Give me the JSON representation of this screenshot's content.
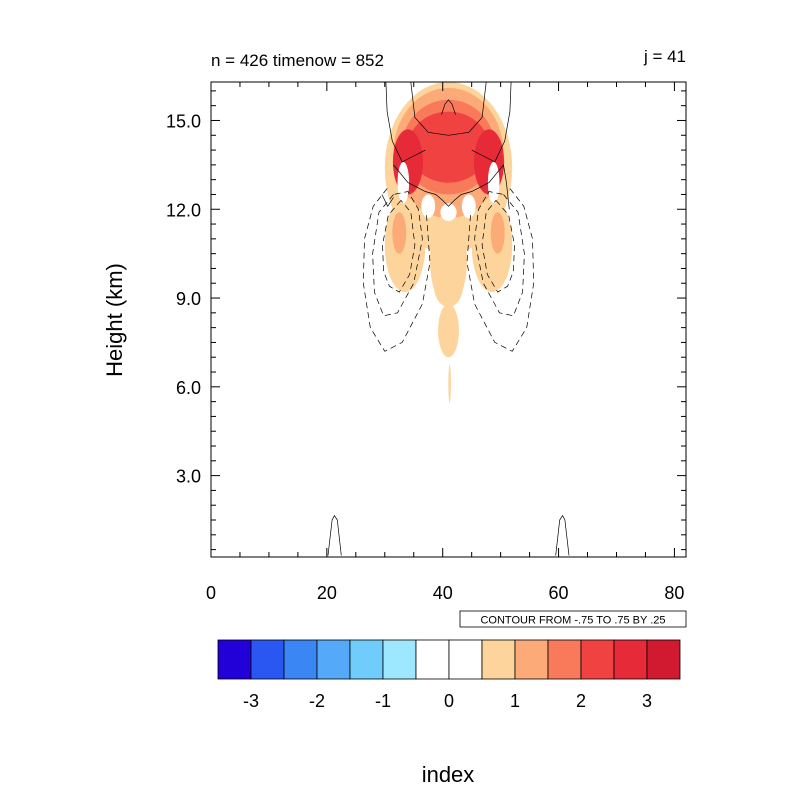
{
  "chart_data": {
    "type": "heatmap",
    "title_left": "n = 426 timenow = 852",
    "title_right": "j = 41",
    "xlabel": "index",
    "ylabel": "Height (km)",
    "xlim": [
      0,
      82
    ],
    "ylim": [
      0.25,
      16.3
    ],
    "xticks": [
      {
        "v": 0,
        "label": "0"
      },
      {
        "v": 20,
        "label": "20"
      },
      {
        "v": 40,
        "label": "40"
      },
      {
        "v": 60,
        "label": "60"
      },
      {
        "v": 80,
        "label": "80"
      }
    ],
    "yticks": [
      {
        "v": 3,
        "label": "3.0"
      },
      {
        "v": 6,
        "label": "6.0"
      },
      {
        "v": 9,
        "label": "9.0"
      },
      {
        "v": 12,
        "label": "12.0"
      },
      {
        "v": 15,
        "label": "15.0"
      }
    ],
    "contour_info": "CONTOUR FROM -.75 TO .75 BY .25",
    "colorbar": {
      "colors": [
        "#2200d8",
        "#2a57f2",
        "#3a86f5",
        "#54aaf8",
        "#70cdfb",
        "#9ee8ff",
        "#ffffff",
        "#ffffff",
        "#fdd49b",
        "#fcaa78",
        "#f87a5a",
        "#f14242",
        "#e62a38",
        "#d11a30"
      ],
      "labels": [
        "-3",
        "-2",
        "-1",
        "0",
        "1",
        "2",
        "3"
      ]
    },
    "filled_features": [
      {
        "name": "upper-ring",
        "level": 1,
        "cx": 41,
        "cy": 13.4,
        "rx": 11,
        "ry": 2.9
      },
      {
        "name": "upper-ring",
        "level": 2,
        "cx": 41,
        "cy": 13.9,
        "rx": 9.5,
        "ry": 2.2
      },
      {
        "name": "upper-ring",
        "level": 3,
        "cx": 41,
        "cy": 14.1,
        "rx": 8,
        "ry": 1.6
      },
      {
        "name": "upper-ring",
        "level": 4,
        "cx": 41,
        "cy": 14.1,
        "rx": 7,
        "ry": 1.2
      },
      {
        "name": "lobe-left",
        "level": 5,
        "cx": 34,
        "cy": 13.6,
        "rx": 2.6,
        "ry": 1.1
      },
      {
        "name": "lobe-right",
        "level": 5,
        "cx": 48,
        "cy": 13.6,
        "rx": 2.6,
        "ry": 1.1
      },
      {
        "name": "side-left",
        "level": 1,
        "cx": 33.5,
        "cy": 10.8,
        "rx": 3.5,
        "ry": 1.6
      },
      {
        "name": "side-right",
        "level": 1,
        "cx": 48.5,
        "cy": 10.8,
        "rx": 3.5,
        "ry": 1.6
      },
      {
        "name": "side-left-core",
        "level": 2,
        "cx": 32.5,
        "cy": 11.2,
        "rx": 1.2,
        "ry": 0.7
      },
      {
        "name": "side-right-core",
        "level": 2,
        "cx": 49.5,
        "cy": 11.2,
        "rx": 1.2,
        "ry": 0.7
      },
      {
        "name": "stem",
        "level": 1,
        "cx": 41,
        "cy": 10.3,
        "rx": 3.2,
        "ry": 1.6
      },
      {
        "name": "stem-lower",
        "level": 1,
        "cx": 41,
        "cy": 9.4,
        "rx": 2.5,
        "ry": 0.7
      },
      {
        "name": "blob",
        "level": 1,
        "cx": 41,
        "cy": 7.9,
        "rx": 1.8,
        "ry": 0.9
      },
      {
        "name": "thin-filament",
        "level": 1,
        "cx": 41.2,
        "cy": 6.1,
        "rx": 0.22,
        "ry": 0.65
      }
    ],
    "line_contours": [
      {
        "style": "solid",
        "points": [
          [
            30.2,
            16.3
          ],
          [
            30.4,
            15.3
          ],
          [
            31.3,
            14.3
          ],
          [
            33,
            13.6
          ],
          [
            35,
            13.8
          ],
          [
            37,
            14.0
          ]
        ]
      },
      {
        "style": "solid",
        "points": [
          [
            51.8,
            16.3
          ],
          [
            51.6,
            15.3
          ],
          [
            50.7,
            14.3
          ],
          [
            49,
            13.6
          ],
          [
            47,
            13.8
          ],
          [
            45,
            14.0
          ]
        ]
      },
      {
        "style": "solid",
        "points": [
          [
            34.5,
            16.3
          ],
          [
            35.2,
            15.1
          ],
          [
            37.5,
            14.6
          ],
          [
            41,
            14.5
          ],
          [
            44.5,
            14.6
          ],
          [
            46.8,
            15.1
          ],
          [
            47.5,
            16.3
          ]
        ]
      },
      {
        "style": "solid",
        "points": [
          [
            39.8,
            15.2
          ],
          [
            40.4,
            15.55
          ],
          [
            41,
            15.7
          ],
          [
            41.6,
            15.55
          ],
          [
            42.2,
            15.2
          ]
        ]
      },
      {
        "style": "solid",
        "points": [
          [
            31.5,
            13.5
          ],
          [
            34,
            12.9
          ],
          [
            37,
            12.6
          ],
          [
            38.8,
            12.5
          ],
          [
            40,
            12.3
          ],
          [
            41,
            12.1
          ],
          [
            42,
            12.3
          ],
          [
            43.2,
            12.5
          ],
          [
            45,
            12.6
          ],
          [
            48,
            12.9
          ],
          [
            50.5,
            13.5
          ],
          [
            51,
            12.9
          ],
          [
            51.5,
            12.0
          ]
        ]
      },
      {
        "style": "solid",
        "points": [
          [
            29.5,
            12.5
          ],
          [
            30.5,
            12.1
          ],
          [
            31.5,
            12.4
          ]
        ]
      },
      {
        "style": "solid",
        "points": [
          [
            20.2,
            0.3
          ],
          [
            20.9,
            1.5
          ],
          [
            21.3,
            1.65
          ],
          [
            21.8,
            1.5
          ],
          [
            22.5,
            0.3
          ]
        ]
      },
      {
        "style": "solid",
        "points": [
          [
            59.5,
            0.3
          ],
          [
            60.2,
            1.5
          ],
          [
            60.7,
            1.65
          ],
          [
            61.1,
            1.5
          ],
          [
            61.8,
            0.3
          ]
        ]
      },
      {
        "style": "dashed",
        "points": [
          [
            32.8,
            12.3
          ],
          [
            30.6,
            11.8
          ],
          [
            29.6,
            10.8
          ],
          [
            29.8,
            9.9
          ],
          [
            30.8,
            9.4
          ],
          [
            32.5,
            9.2
          ],
          [
            34.3,
            9.8
          ],
          [
            35.2,
            10.8
          ],
          [
            34.5,
            11.9
          ],
          [
            32.8,
            12.3
          ]
        ]
      },
      {
        "style": "dashed",
        "points": [
          [
            49.2,
            12.3
          ],
          [
            51.4,
            11.8
          ],
          [
            52.4,
            10.8
          ],
          [
            52.2,
            9.9
          ],
          [
            51.2,
            9.4
          ],
          [
            49.5,
            9.2
          ],
          [
            47.7,
            9.8
          ],
          [
            46.8,
            10.8
          ],
          [
            47.5,
            11.9
          ],
          [
            49.2,
            12.3
          ]
        ]
      },
      {
        "style": "dashed",
        "points": [
          [
            31.5,
            12.5
          ],
          [
            29.0,
            11.9
          ],
          [
            27.9,
            10.5
          ],
          [
            28.2,
            9.2
          ],
          [
            29.8,
            8.4
          ],
          [
            32.2,
            8.5
          ],
          [
            35.0,
            9.5
          ],
          [
            36.5,
            11.0
          ],
          [
            35.8,
            12.0
          ],
          [
            34.0,
            12.6
          ],
          [
            31.5,
            12.5
          ]
        ]
      },
      {
        "style": "dashed",
        "points": [
          [
            50.5,
            12.5
          ],
          [
            53.0,
            11.9
          ],
          [
            54.1,
            10.5
          ],
          [
            53.8,
            9.2
          ],
          [
            52.2,
            8.4
          ],
          [
            49.8,
            8.5
          ],
          [
            47.0,
            9.5
          ],
          [
            45.5,
            11.0
          ],
          [
            46.2,
            12.0
          ],
          [
            48.0,
            12.6
          ],
          [
            50.5,
            12.5
          ]
        ]
      },
      {
        "style": "dashed",
        "points": [
          [
            30.4,
            12.7
          ],
          [
            28.0,
            12.1
          ],
          [
            26.5,
            11.0
          ],
          [
            26.3,
            9.5
          ],
          [
            27.5,
            8.0
          ],
          [
            30.0,
            7.2
          ],
          [
            33.0,
            7.5
          ],
          [
            36.5,
            8.8
          ],
          [
            37.8,
            10.2
          ],
          [
            37.2,
            11.8
          ]
        ]
      },
      {
        "style": "dashed",
        "points": [
          [
            51.6,
            12.7
          ],
          [
            54.0,
            12.1
          ],
          [
            55.5,
            11.0
          ],
          [
            55.7,
            9.5
          ],
          [
            54.5,
            8.0
          ],
          [
            52.0,
            7.2
          ],
          [
            49.0,
            7.5
          ],
          [
            45.5,
            8.8
          ],
          [
            44.2,
            10.2
          ],
          [
            44.8,
            11.8
          ]
        ]
      }
    ]
  }
}
